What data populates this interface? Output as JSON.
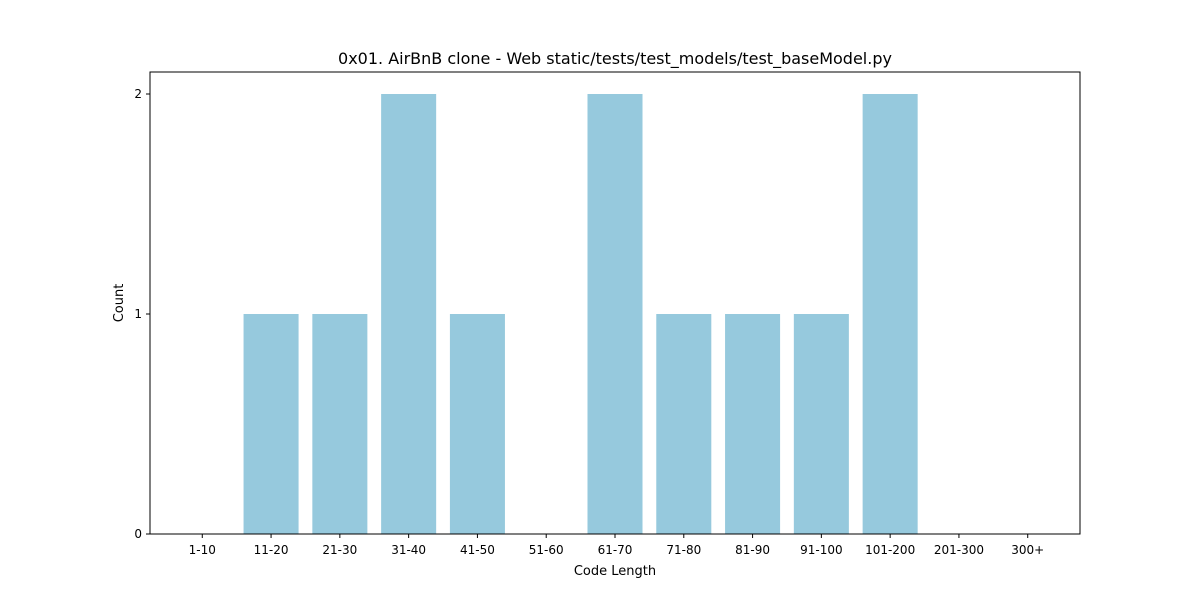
{
  "chart_data": {
    "type": "bar",
    "title": "0x01. AirBnB clone - Web static/tests/test_models/test_baseModel.py",
    "xlabel": "Code Length",
    "ylabel": "Count",
    "categories": [
      "1-10",
      "11-20",
      "21-30",
      "31-40",
      "41-50",
      "51-60",
      "61-70",
      "71-80",
      "81-90",
      "91-100",
      "101-200",
      "201-300",
      "300+"
    ],
    "values": [
      0,
      1,
      1,
      2,
      1,
      0,
      2,
      1,
      1,
      1,
      2,
      0,
      0
    ],
    "yticks": [
      0,
      1,
      2
    ],
    "ylim": [
      0,
      2.1
    ],
    "grid": false,
    "bar_color": "#96c9dd"
  }
}
